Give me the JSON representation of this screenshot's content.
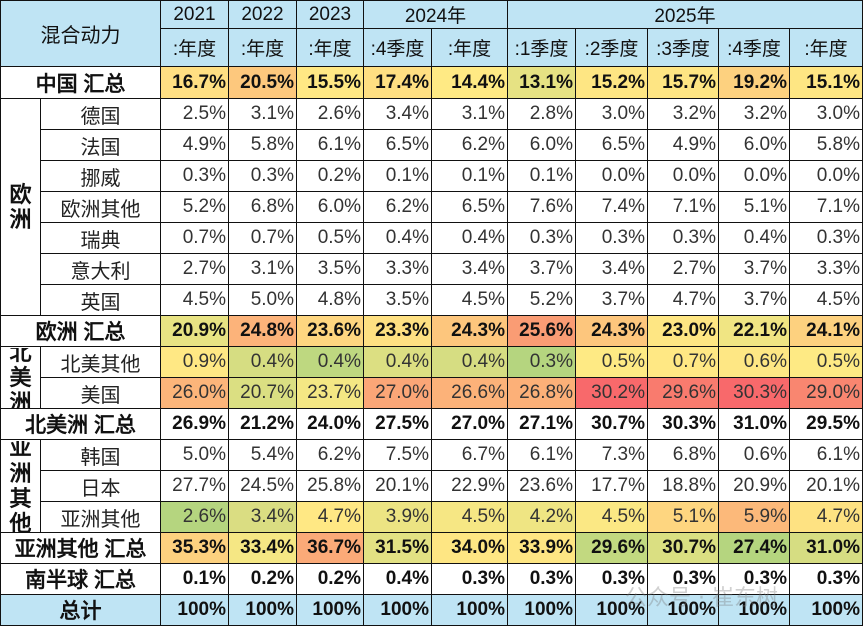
{
  "header": {
    "corner": "混合动力",
    "years": [
      {
        "label": "2021",
        "span": 1
      },
      {
        "label": "2022",
        "span": 1
      },
      {
        "label": "2023",
        "span": 1
      },
      {
        "label": "2024年",
        "span": 2
      },
      {
        "label": "2025年",
        "span": 5
      }
    ],
    "periods": [
      ":年度",
      ":年度",
      ":年度",
      ":4季度",
      ":年度",
      ":1季度",
      ":2季度",
      ":3季度",
      ":4季度",
      ":年度"
    ]
  },
  "groups": {
    "europe": "欧洲",
    "north_america": "北美洲",
    "asia_other": "亚洲其他"
  },
  "rows": [
    {
      "label": "中国 汇总",
      "type": "summary",
      "values": [
        "16.7%",
        "20.5%",
        "15.5%",
        "17.4%",
        "14.4%",
        "13.1%",
        "15.2%",
        "15.7%",
        "19.2%",
        "15.1%"
      ],
      "colors": [
        "#ffdf83",
        "#fdc87d",
        "#ffe884",
        "#ffdf82",
        "#ffea84",
        "#e6e283",
        "#fee683",
        "#fee583",
        "#fdd17f",
        "#fee683"
      ]
    },
    {
      "label": "德国",
      "group": "europe",
      "values": [
        "2.5%",
        "3.1%",
        "2.6%",
        "3.4%",
        "3.1%",
        "2.8%",
        "3.0%",
        "3.2%",
        "3.2%",
        "3.0%"
      ]
    },
    {
      "label": "法国",
      "group": "europe",
      "values": [
        "4.9%",
        "5.8%",
        "6.1%",
        "6.5%",
        "6.2%",
        "6.0%",
        "6.5%",
        "4.9%",
        "6.0%",
        "5.8%"
      ]
    },
    {
      "label": "挪威",
      "group": "europe",
      "values": [
        "0.3%",
        "0.3%",
        "0.2%",
        "0.1%",
        "0.1%",
        "0.1%",
        "0.0%",
        "0.0%",
        "0.0%",
        "0.0%"
      ]
    },
    {
      "label": "欧洲其他",
      "group": "europe",
      "values": [
        "5.2%",
        "6.8%",
        "6.0%",
        "6.2%",
        "6.5%",
        "7.6%",
        "7.4%",
        "7.1%",
        "5.1%",
        "7.1%"
      ]
    },
    {
      "label": "瑞典",
      "group": "europe",
      "values": [
        "0.7%",
        "0.7%",
        "0.5%",
        "0.4%",
        "0.4%",
        "0.3%",
        "0.3%",
        "0.3%",
        "0.4%",
        "0.3%"
      ]
    },
    {
      "label": "意大利",
      "group": "europe",
      "values": [
        "2.7%",
        "3.1%",
        "3.5%",
        "3.3%",
        "3.4%",
        "3.7%",
        "3.4%",
        "2.7%",
        "3.7%",
        "3.3%"
      ]
    },
    {
      "label": "英国",
      "group": "europe",
      "values": [
        "4.5%",
        "5.0%",
        "4.8%",
        "3.5%",
        "4.5%",
        "5.2%",
        "3.7%",
        "4.7%",
        "3.7%",
        "4.5%"
      ]
    },
    {
      "label": "欧洲 汇总",
      "type": "summary",
      "values": [
        "20.9%",
        "24.8%",
        "23.6%",
        "23.3%",
        "24.3%",
        "25.6%",
        "24.3%",
        "23.0%",
        "22.1%",
        "24.1%"
      ],
      "colors": [
        "#e8e383",
        "#fcb37a",
        "#fed680",
        "#fee082",
        "#fdc67d",
        "#fa9c74",
        "#fdc67d",
        "#fee683",
        "#f0e583",
        "#fdd17f"
      ]
    },
    {
      "label": "北美其他",
      "group": "north_america",
      "values": [
        "0.9%",
        "0.4%",
        "0.4%",
        "0.4%",
        "0.4%",
        "0.3%",
        "0.5%",
        "0.7%",
        "0.6%",
        "0.5%"
      ],
      "colors": [
        "#ffe884",
        "#d6dd82",
        "#bed880",
        "#dcdf82",
        "#d6dd82",
        "#b5d57f",
        "#feea84",
        "#ffe884",
        "#fee784",
        "#feea84"
      ]
    },
    {
      "label": "美国",
      "group": "north_america",
      "values": [
        "26.0%",
        "20.7%",
        "23.7%",
        "27.0%",
        "26.6%",
        "26.8%",
        "30.2%",
        "29.6%",
        "30.3%",
        "29.0%"
      ],
      "colors": [
        "#fcb57a",
        "#dbdf82",
        "#f4e784",
        "#fba677",
        "#fcb279",
        "#fcb078",
        "#f8696b",
        "#f97b6e",
        "#f8696b",
        "#f98670"
      ]
    },
    {
      "label": "北美洲 汇总",
      "type": "summary",
      "values": [
        "26.9%",
        "21.2%",
        "24.0%",
        "27.5%",
        "27.0%",
        "27.1%",
        "30.7%",
        "30.3%",
        "31.0%",
        "29.5%"
      ]
    },
    {
      "label": "韩国",
      "group": "asia_other",
      "values": [
        "5.0%",
        "5.4%",
        "6.2%",
        "7.5%",
        "6.7%",
        "6.1%",
        "7.3%",
        "6.8%",
        "0.6%",
        "6.1%"
      ]
    },
    {
      "label": "日本",
      "group": "asia_other",
      "values": [
        "27.7%",
        "24.5%",
        "25.8%",
        "20.1%",
        "22.9%",
        "23.6%",
        "17.7%",
        "18.8%",
        "20.9%",
        "20.1%"
      ]
    },
    {
      "label": "亚洲其他",
      "group": "asia_other",
      "values": [
        "2.6%",
        "3.4%",
        "4.7%",
        "3.9%",
        "4.5%",
        "4.2%",
        "4.5%",
        "5.1%",
        "5.9%",
        "4.7%"
      ],
      "colors": [
        "#b5d57f",
        "#dadd82",
        "#ffe884",
        "#ece483",
        "#f6e784",
        "#efe583",
        "#fbe884",
        "#fed680",
        "#fcb97a",
        "#fee282"
      ]
    },
    {
      "label": "亚洲其他 汇总",
      "type": "summary",
      "values": [
        "35.3%",
        "33.4%",
        "36.7%",
        "31.5%",
        "34.0%",
        "33.9%",
        "29.6%",
        "30.7%",
        "27.4%",
        "31.0%"
      ],
      "colors": [
        "#fdd17f",
        "#f5e784",
        "#fbaa78",
        "#e2e183",
        "#fee683",
        "#fee683",
        "#c2d980",
        "#dadf82",
        "#b5d57f",
        "#d6dd82"
      ]
    },
    {
      "label": "南半球 汇总",
      "type": "summary",
      "values": [
        "0.1%",
        "0.2%",
        "0.2%",
        "0.4%",
        "0.3%",
        "0.3%",
        "0.3%",
        "0.3%",
        "0.3%",
        "0.3%"
      ]
    },
    {
      "label": "总计",
      "type": "total",
      "values": [
        "100%",
        "100%",
        "100%",
        "100%",
        "100%",
        "100%",
        "100%",
        "100%",
        "100%",
        "100%"
      ]
    }
  ],
  "watermark": "公众号 · 崔东树"
}
